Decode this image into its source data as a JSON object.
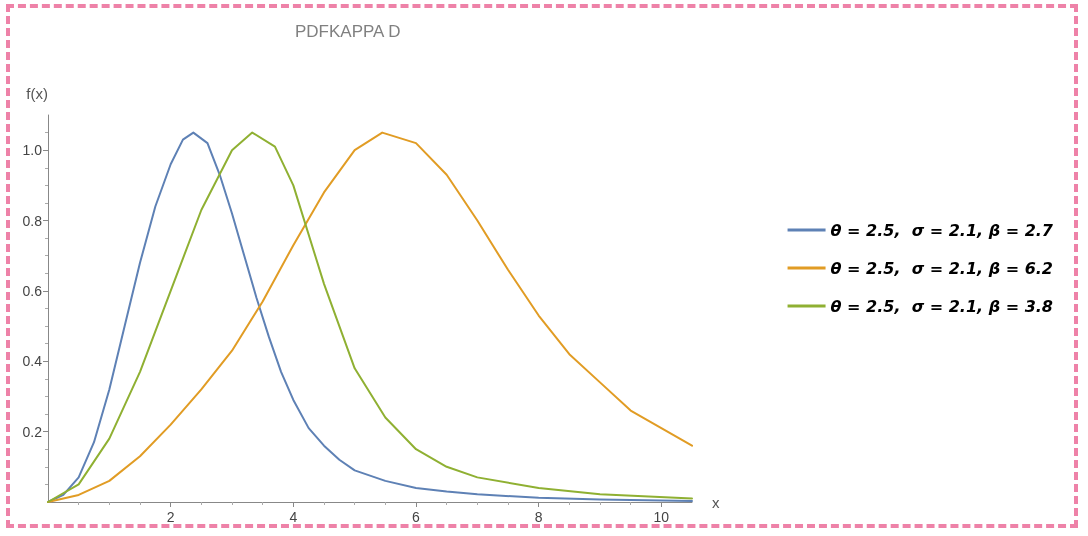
{
  "chart_data": {
    "type": "line",
    "title": "PDFKAPPA D",
    "xlabel": "x",
    "ylabel": "f(x)",
    "xlim": [
      0,
      10.5
    ],
    "ylim": [
      0,
      1.1
    ],
    "xticks": [
      2,
      4,
      6,
      8,
      10
    ],
    "yticks": [
      0.2,
      0.4,
      0.6,
      0.8,
      {
        "value": 1,
        "label": "1.0"
      }
    ],
    "grid": false,
    "legend": "right",
    "marker": "none",
    "line_style": "solid",
    "series": [
      {
        "name": "θ = 2.5,  σ = 2.1, β = 2.7",
        "color": "#5e81b5",
        "x": [
          0,
          0.25,
          0.5,
          0.75,
          1,
          1.25,
          1.5,
          1.75,
          2,
          2.2,
          2.37,
          2.6,
          2.8,
          3,
          3.2,
          3.4,
          3.6,
          3.8,
          4,
          4.25,
          4.5,
          4.75,
          5,
          5.5,
          6,
          6.5,
          7,
          8,
          9,
          10.5
        ],
        "values": [
          0,
          0.02,
          0.07,
          0.17,
          0.32,
          0.5,
          0.68,
          0.84,
          0.96,
          1.03,
          1.05,
          1.02,
          0.93,
          0.82,
          0.7,
          0.58,
          0.47,
          0.37,
          0.29,
          0.21,
          0.16,
          0.12,
          0.09,
          0.06,
          0.04,
          0.03,
          0.022,
          0.012,
          0.007,
          0.003
        ]
      },
      {
        "name": "θ = 2.5,  σ = 2.1, β = 6.2",
        "color": "#e19c24",
        "x": [
          0,
          0.5,
          1,
          1.5,
          2,
          2.5,
          3,
          3.5,
          4,
          4.5,
          5,
          5.45,
          6,
          6.5,
          7,
          7.5,
          8,
          8.5,
          9,
          9.5,
          10,
          10.5
        ],
        "values": [
          0,
          0.02,
          0.06,
          0.13,
          0.22,
          0.32,
          0.43,
          0.57,
          0.73,
          0.88,
          1.0,
          1.05,
          1.02,
          0.93,
          0.8,
          0.66,
          0.53,
          0.42,
          0.34,
          0.26,
          0.21,
          0.16
        ]
      },
      {
        "name": "θ = 2.5,  σ = 2.1, β = 3.8",
        "color": "#8fb032",
        "x": [
          0,
          0.5,
          1,
          1.5,
          2,
          2.5,
          3,
          3.33,
          3.7,
          4,
          4.5,
          5,
          5.5,
          6,
          6.5,
          7,
          8,
          9,
          10.5
        ],
        "values": [
          0,
          0.05,
          0.18,
          0.37,
          0.6,
          0.83,
          1.0,
          1.05,
          1.01,
          0.9,
          0.62,
          0.38,
          0.24,
          0.15,
          0.1,
          0.07,
          0.04,
          0.022,
          0.01
        ]
      }
    ]
  }
}
